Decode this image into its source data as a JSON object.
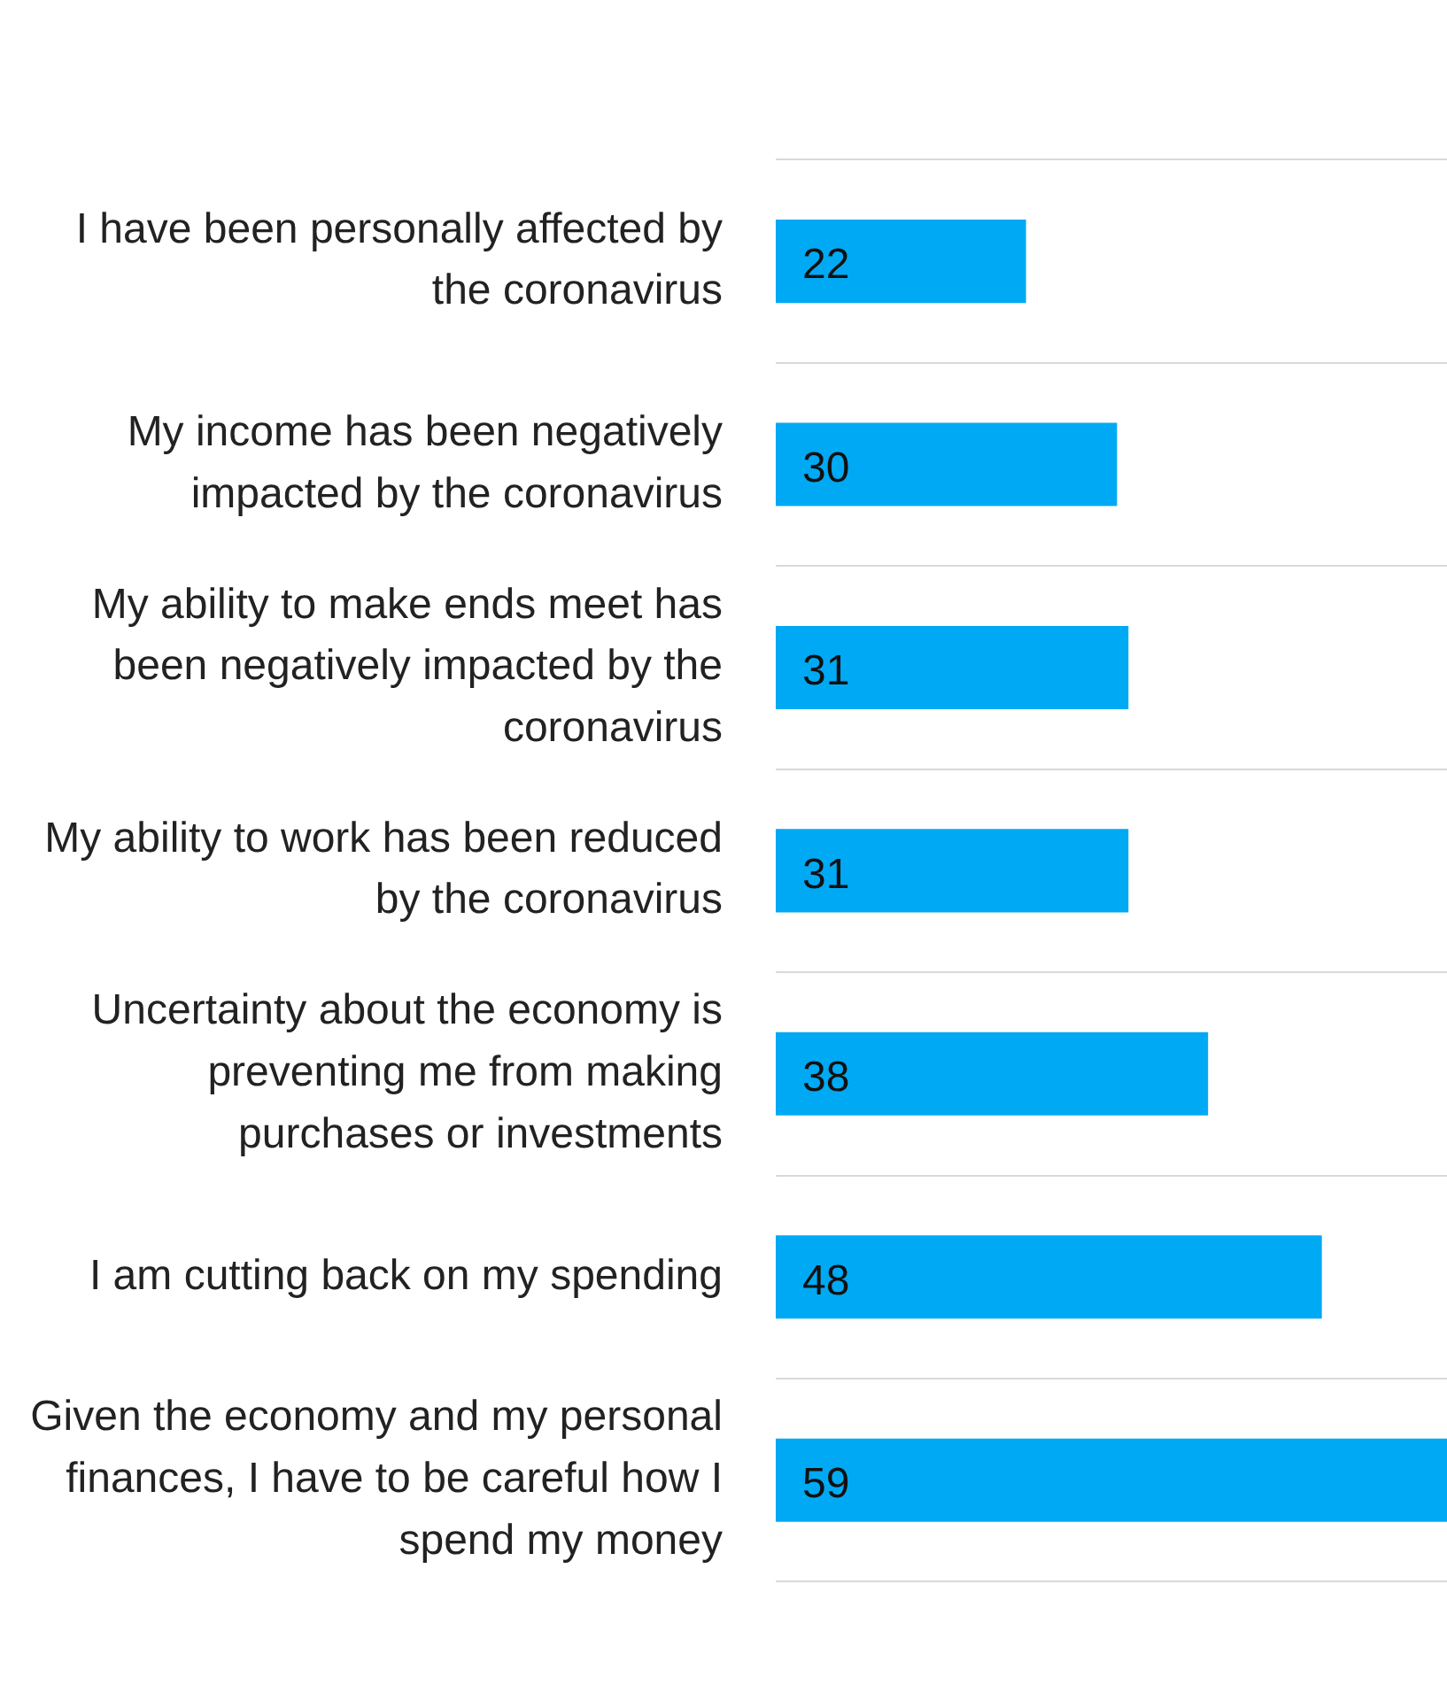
{
  "chart_data": {
    "type": "bar",
    "orientation": "horizontal",
    "categories": [
      "I have been personally affected by the coronavirus",
      "My income has been negatively impacted by the coronavirus",
      "My ability to make ends meet has been negatively impacted by the coronavirus",
      "My ability to work has been reduced by the coronavirus",
      "Uncertainty about the economy is preventing me from making purchases or investments",
      "I am cutting back on my spending",
      "Given the economy and my personal finances, I have to be careful how I spend my money"
    ],
    "values": [
      22,
      30,
      31,
      31,
      38,
      48,
      59
    ],
    "color": "#00a9f4",
    "data_labels": true,
    "grid": "y",
    "legend": false,
    "tick_labels": "y"
  }
}
